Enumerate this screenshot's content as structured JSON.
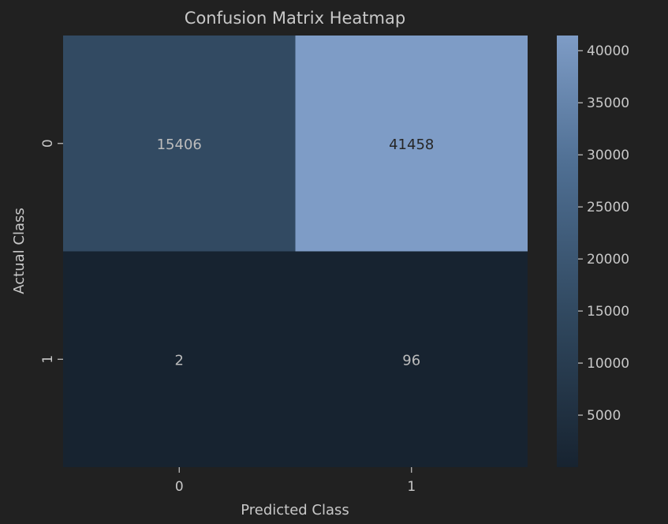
{
  "chart_data": {
    "type": "heatmap",
    "title": "Confusion Matrix Heatmap",
    "xlabel": "Predicted Class",
    "ylabel": "Actual Class",
    "x_categories": [
      "0",
      "1"
    ],
    "y_categories": [
      "0",
      "1"
    ],
    "values": [
      [
        15406,
        41458
      ],
      [
        2,
        96
      ]
    ],
    "colorbar": {
      "ticks": [
        5000,
        10000,
        15000,
        20000,
        25000,
        30000,
        35000,
        40000
      ],
      "range": [
        2,
        41458
      ]
    },
    "colors": {
      "background": "#212121",
      "text": "#c8c8c8",
      "low": "#172330",
      "high": "#7e9cc6"
    }
  }
}
